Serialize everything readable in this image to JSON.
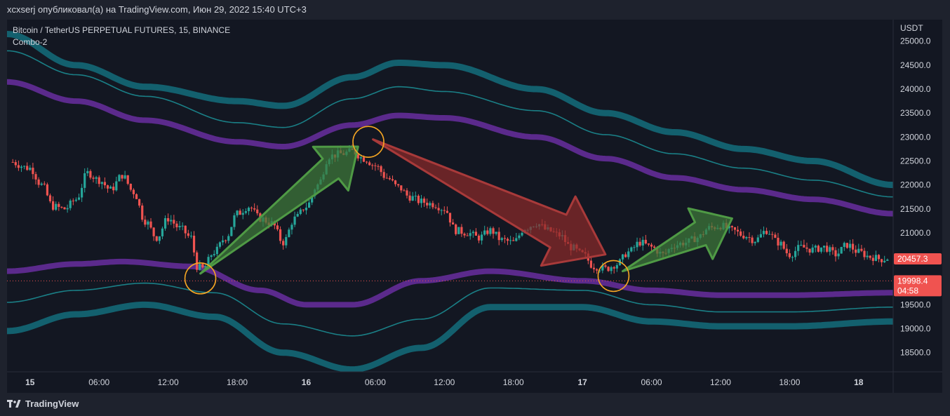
{
  "header": {
    "text": "xcxserj опубликовал(а) на TradingView.com, Июн 29, 2022 15:40 UTC+3"
  },
  "legend": {
    "symbol_line": "Bitcoin / TetherUS PERPETUAL FUTURES, 15, BINANCE",
    "indicator": "Combo-2"
  },
  "footer": {
    "brand": "TradingView"
  },
  "colors": {
    "background": "#131722",
    "outer_band": "#13606e",
    "inner_band": "#1a7f86",
    "mid_band": "#5b2a8c",
    "candle_up": "#26a69a",
    "candle_down": "#ef5350",
    "arrow_green": "#3f7a3a",
    "arrow_red": "#8b2a2a",
    "marker_circle": "#f5a623",
    "price_tag": "#f05350"
  },
  "chart_data": {
    "type": "candlestick",
    "title": "Bitcoin / TetherUS PERPETUAL FUTURES, 15, BINANCE",
    "currency_label": "USDT",
    "ylim": [
      18100,
      25450
    ],
    "y_ticks": [
      25000.0,
      24500.0,
      24000.0,
      23500.0,
      23000.0,
      22500.0,
      22000.0,
      21500.0,
      21000.0,
      20500.0,
      20000.0,
      19500.0,
      19000.0,
      18500.0
    ],
    "y_tick_labels": [
      "25000.0",
      "24500.0",
      "24000.0",
      "23500.0",
      "23000.0",
      "22500.0",
      "22000.0",
      "21500.0",
      "21000.0",
      "20500.0",
      "20000.0",
      "19500.0",
      "19000.0",
      "18500.0"
    ],
    "x_ticks": [
      {
        "label": "15",
        "t": 0,
        "bold": true
      },
      {
        "label": "06:00",
        "t": 6
      },
      {
        "label": "12:00",
        "t": 12
      },
      {
        "label": "18:00",
        "t": 18
      },
      {
        "label": "16",
        "t": 24,
        "bold": true
      },
      {
        "label": "06:00",
        "t": 30
      },
      {
        "label": "12:00",
        "t": 36
      },
      {
        "label": "18:00",
        "t": 42
      },
      {
        "label": "17",
        "t": 48,
        "bold": true
      },
      {
        "label": "06:00",
        "t": 54
      },
      {
        "label": "12:00",
        "t": 60
      },
      {
        "label": "18:00",
        "t": 66
      },
      {
        "label": "18",
        "t": 72,
        "bold": true
      }
    ],
    "xlim": [
      -2,
      75
    ],
    "price_path": [
      [
        -2,
        22500
      ],
      [
        0,
        22350
      ],
      [
        1,
        22000
      ],
      [
        2,
        21550
      ],
      [
        3,
        21500
      ],
      [
        4,
        21700
      ],
      [
        5,
        22250
      ],
      [
        6,
        22100
      ],
      [
        7,
        21900
      ],
      [
        8,
        22200
      ],
      [
        9,
        21850
      ],
      [
        10,
        21250
      ],
      [
        11,
        20900
      ],
      [
        12,
        21300
      ],
      [
        13,
        21100
      ],
      [
        14,
        20900
      ],
      [
        14.5,
        20300
      ],
      [
        15,
        20250
      ],
      [
        16,
        20600
      ],
      [
        17,
        20900
      ],
      [
        18,
        21400
      ],
      [
        19,
        21550
      ],
      [
        20,
        21300
      ],
      [
        21,
        21200
      ],
      [
        22,
        20800
      ],
      [
        23,
        21300
      ],
      [
        24,
        21550
      ],
      [
        25,
        22000
      ],
      [
        26,
        22600
      ],
      [
        27,
        22650
      ],
      [
        28,
        22700
      ],
      [
        29,
        22550
      ],
      [
        30,
        22400
      ],
      [
        31,
        22150
      ],
      [
        32,
        21950
      ],
      [
        33,
        21750
      ],
      [
        34,
        21650
      ],
      [
        35,
        21600
      ],
      [
        36,
        21500
      ],
      [
        37,
        21050
      ],
      [
        38,
        21000
      ],
      [
        39,
        20900
      ],
      [
        40,
        21050
      ],
      [
        41,
        20850
      ],
      [
        42,
        20800
      ],
      [
        43,
        21100
      ],
      [
        44,
        21200
      ],
      [
        45,
        21050
      ],
      [
        46,
        20950
      ],
      [
        47,
        20700
      ],
      [
        48,
        20550
      ],
      [
        49,
        20300
      ],
      [
        50,
        20250
      ],
      [
        51,
        20350
      ],
      [
        52,
        20600
      ],
      [
        53,
        20800
      ],
      [
        54,
        20700
      ],
      [
        55,
        20550
      ],
      [
        56,
        20750
      ],
      [
        57,
        20800
      ],
      [
        58,
        20900
      ],
      [
        59,
        21100
      ],
      [
        60,
        21150
      ],
      [
        61,
        21050
      ],
      [
        62,
        20950
      ],
      [
        63,
        20850
      ],
      [
        64,
        21050
      ],
      [
        65,
        20800
      ],
      [
        66,
        20550
      ],
      [
        67,
        20700
      ],
      [
        68,
        20650
      ],
      [
        69,
        20700
      ],
      [
        70,
        20550
      ],
      [
        71,
        20750
      ],
      [
        72,
        20600
      ],
      [
        73,
        20500
      ],
      [
        74,
        20450
      ],
      [
        75,
        20500
      ]
    ],
    "series": [
      {
        "name": "",
        "role": "outer_upper",
        "points": [
          [
            -2,
            25150
          ],
          [
            4,
            24500
          ],
          [
            10,
            24050
          ],
          [
            18,
            23750
          ],
          [
            22,
            23650
          ],
          [
            28,
            24250
          ],
          [
            32,
            24550
          ],
          [
            36,
            24500
          ],
          [
            44,
            24000
          ],
          [
            50,
            23500
          ],
          [
            56,
            23100
          ],
          [
            62,
            22750
          ],
          [
            68,
            22500
          ],
          [
            75,
            22000
          ]
        ]
      },
      {
        "name": "",
        "role": "inner_upper",
        "points": [
          [
            -2,
            24800
          ],
          [
            4,
            24300
          ],
          [
            10,
            23850
          ],
          [
            18,
            23300
          ],
          [
            22,
            23200
          ],
          [
            28,
            23800
          ],
          [
            32,
            24050
          ],
          [
            36,
            23950
          ],
          [
            44,
            23550
          ],
          [
            50,
            23050
          ],
          [
            56,
            22650
          ],
          [
            62,
            22350
          ],
          [
            68,
            22100
          ],
          [
            75,
            21750
          ]
        ]
      },
      {
        "name": "",
        "role": "mid_upper",
        "points": [
          [
            -2,
            24150
          ],
          [
            4,
            23750
          ],
          [
            10,
            23350
          ],
          [
            18,
            22900
          ],
          [
            22,
            22800
          ],
          [
            28,
            23250
          ],
          [
            32,
            23450
          ],
          [
            36,
            23400
          ],
          [
            44,
            23000
          ],
          [
            50,
            22550
          ],
          [
            56,
            22150
          ],
          [
            62,
            21900
          ],
          [
            68,
            21700
          ],
          [
            75,
            21400
          ]
        ]
      },
      {
        "name": "",
        "role": "mid_lower",
        "points": [
          [
            -2,
            20200
          ],
          [
            4,
            20350
          ],
          [
            8,
            20400
          ],
          [
            14,
            20300
          ],
          [
            20,
            19800
          ],
          [
            24,
            19500
          ],
          [
            28,
            19500
          ],
          [
            34,
            20000
          ],
          [
            40,
            20200
          ],
          [
            48,
            20000
          ],
          [
            54,
            19800
          ],
          [
            60,
            19700
          ],
          [
            66,
            19700
          ],
          [
            75,
            19750
          ]
        ]
      },
      {
        "name": "",
        "role": "inner_lower",
        "points": [
          [
            -2,
            19550
          ],
          [
            4,
            19800
          ],
          [
            10,
            19950
          ],
          [
            16,
            19750
          ],
          [
            22,
            19100
          ],
          [
            28,
            18850
          ],
          [
            34,
            19200
          ],
          [
            40,
            19850
          ],
          [
            48,
            19800
          ],
          [
            54,
            19500
          ],
          [
            60,
            19350
          ],
          [
            66,
            19350
          ],
          [
            75,
            19450
          ]
        ]
      },
      {
        "name": "",
        "role": "outer_lower",
        "points": [
          [
            -2,
            18950
          ],
          [
            4,
            19300
          ],
          [
            10,
            19500
          ],
          [
            16,
            19250
          ],
          [
            22,
            18500
          ],
          [
            28,
            18150
          ],
          [
            34,
            18600
          ],
          [
            40,
            19450
          ],
          [
            48,
            19450
          ],
          [
            54,
            19150
          ],
          [
            60,
            19050
          ],
          [
            66,
            19050
          ],
          [
            75,
            19150
          ]
        ]
      }
    ],
    "annotations": {
      "circles": [
        {
          "t": 14.8,
          "price": 20050
        },
        {
          "t": 29.4,
          "price": 22900
        },
        {
          "t": 50.7,
          "price": 20100
        }
      ],
      "arrows": [
        {
          "color": "green",
          "from": [
            14.8,
            20150
          ],
          "to": [
            28.5,
            22800
          ]
        },
        {
          "color": "red",
          "from": [
            29.8,
            22950
          ],
          "to": [
            50,
            20550
          ]
        },
        {
          "color": "green",
          "from": [
            51.5,
            20200
          ],
          "to": [
            61,
            21300
          ]
        }
      ]
    },
    "price_labels": [
      {
        "value": "20457.3",
        "price": 20457.3
      },
      {
        "value": "19998.4",
        "price": 19998.4,
        "timer": "04:58",
        "dotted_line": true
      }
    ]
  }
}
